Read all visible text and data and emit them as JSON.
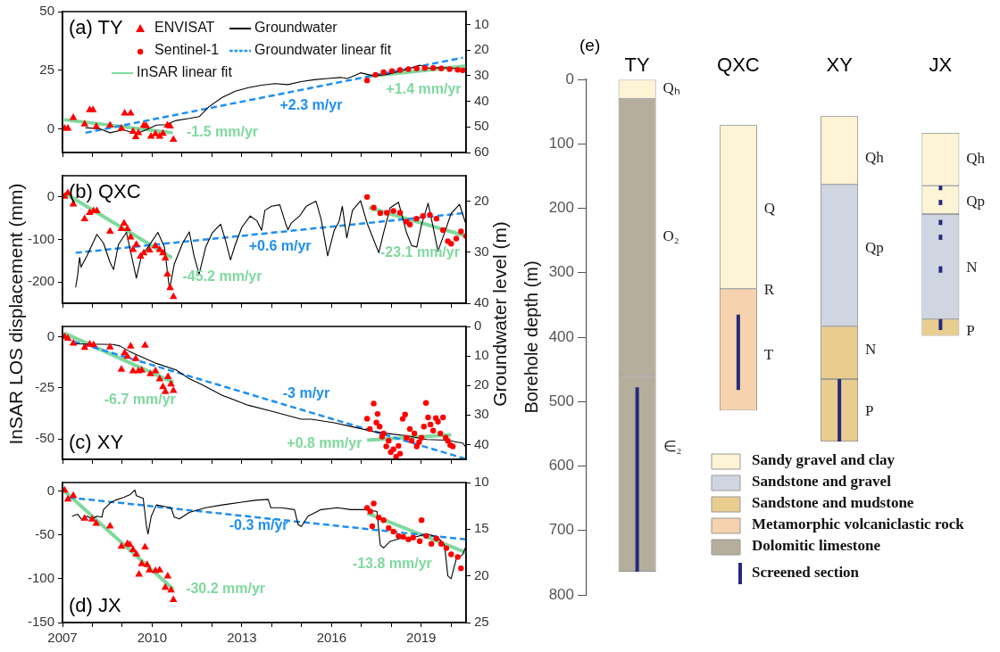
{
  "chart_data": [
    {
      "type": "scatter",
      "title": "(a) TY",
      "ylabel": "InSAR LOS displacement (mm)",
      "y2label": "Groundwater level (m)",
      "legend": "top left",
      "tick_labels": "y",
      "xlim": [
        2007,
        2020.5
      ],
      "xticks": [
        2007,
        {
          "value": 2008,
          "label": null
        },
        {
          "value": 2009,
          "label": null
        },
        2010,
        {
          "value": 2011,
          "label": null
        },
        {
          "value": 2012,
          "label": null
        },
        2013,
        {
          "value": 2014,
          "label": null
        },
        {
          "value": 2015,
          "label": null
        },
        2016,
        {
          "value": 2017,
          "label": null
        },
        {
          "value": 2018,
          "label": null
        },
        2019,
        {
          "value": 2020,
          "label": null
        }
      ],
      "ylim": [
        -10,
        50
      ],
      "yticks": [
        0,
        25,
        50
      ],
      "y2lim": [
        60,
        5
      ],
      "y2ticks": [
        10,
        20,
        30,
        40,
        50,
        60
      ],
      "series": [
        {
          "name": "ENVISAT",
          "type": "scatter",
          "marker": "triangle",
          "color": "#ff0000",
          "x": [
            2007.07,
            2007.18,
            2007.36,
            2007.74,
            2007.91,
            2008.02,
            2008.13,
            2008.59,
            2008.97,
            2009.08,
            2009.28,
            2009.36,
            2009.45,
            2009.54,
            2009.72,
            2009.8,
            2009.96,
            2010.11,
            2010.25,
            2010.36,
            2010.51,
            2010.6,
            2010.71
          ],
          "values": [
            0.3,
            0.3,
            4.8,
            2.1,
            8.1,
            8.1,
            1,
            1.6,
            0.3,
            6.7,
            6.7,
            -1.1,
            -3.4,
            -1.6,
            1.6,
            1.3,
            -3.2,
            -2.1,
            -3.2,
            -1.9,
            1.6,
            1.2,
            -4.5
          ]
        },
        {
          "name": "Groundwater",
          "type": "line",
          "axis": "y2",
          "color": "#000000",
          "x": [
            2007.77,
            2008.26,
            2008.59,
            2009.03,
            2009.47,
            2009.8,
            2010.14,
            2010.47,
            2010.8,
            2011.24,
            2011.57,
            2011.9,
            2012.34,
            2012.78,
            2013.22,
            2013.66,
            2014.1,
            2014.54,
            2014.98,
            2015.42,
            2015.87,
            2016.31,
            2016.53,
            2016.75,
            2016.97,
            2017.19,
            2017.41,
            2017.85,
            2018.29,
            2018.73,
            2018.95,
            2019.28,
            2019.62,
            2020.06,
            2020.39,
            2020.5
          ],
          "values": [
            50.3,
            50.8,
            52.3,
            51.1,
            52.7,
            51.1,
            49.3,
            49.1,
            47.5,
            46.7,
            46,
            42.1,
            38.5,
            36.1,
            34.7,
            33.7,
            33.1,
            33.5,
            32.3,
            31.6,
            31.1,
            30.7,
            31.1,
            30.1,
            28.9,
            29.5,
            30.1,
            29.5,
            28.3,
            26.8,
            25.9,
            27.1,
            26.8,
            27.1,
            27.9,
            28.6
          ]
        },
        {
          "name": "Sentinel-1",
          "type": "scatter",
          "marker": "circle",
          "color": "#ff0000",
          "x": [
            2017.19,
            2017.47,
            2017.74,
            2018.02,
            2018.29,
            2018.57,
            2018.85,
            2019.12,
            2019.4,
            2019.67,
            2019.95,
            2020.22,
            2020.39
          ],
          "values": [
            20.7,
            23.1,
            24.2,
            24.7,
            25.1,
            25.5,
            25.8,
            26,
            26,
            25.8,
            25.5,
            25.2,
            25
          ]
        },
        {
          "name": "Groundwater linear fit",
          "type": "line",
          "axis": "y2",
          "line_style": "dashed",
          "color": "#1e8ff0",
          "x": [
            2007.77,
            2020.39
          ],
          "values": [
            52.3,
            23
          ]
        },
        {
          "name": "InSAR linear fit",
          "type": "line",
          "color": "#7fd99e",
          "x": [
            2007.05,
            2010.69
          ],
          "values": [
            4,
            -1.6
          ]
        },
        {
          "type": "line",
          "color": "#7fd99e",
          "x": [
            2017.19,
            2020.5
          ],
          "values": [
            22.4,
            26.8
          ]
        }
      ],
      "annotations": [
        "+2.3 m/yr",
        "-1.5 mm/yr",
        "+1.4 mm/yr"
      ]
    },
    {
      "type": "scatter",
      "title": "(b) QXC",
      "tick_labels": "y",
      "xlim": [
        2007,
        2020.5
      ],
      "xticks": [
        2007,
        {
          "value": 2008,
          "label": null
        },
        {
          "value": 2009,
          "label": null
        },
        2010,
        {
          "value": 2011,
          "label": null
        },
        {
          "value": 2012,
          "label": null
        },
        2013,
        {
          "value": 2014,
          "label": null
        },
        {
          "value": 2015,
          "label": null
        },
        2016,
        {
          "value": 2017,
          "label": null
        },
        {
          "value": 2018,
          "label": null
        },
        2019,
        {
          "value": 2020,
          "label": null
        }
      ],
      "ylim": [
        -250,
        50
      ],
      "yticks": [
        -200,
        -100,
        0
      ],
      "y2lim": [
        40,
        15
      ],
      "y2ticks": [
        20,
        30,
        40
      ],
      "series": [
        {
          "type": "scatter",
          "marker": "triangle",
          "color": "#ff0000",
          "x": [
            2007.07,
            2007.18,
            2007.36,
            2007.74,
            2007.91,
            2008.04,
            2008.15,
            2008.59,
            2008.97,
            2009.06,
            2009.17,
            2009.28,
            2009.36,
            2009.47,
            2009.61,
            2009.72,
            2009.91,
            2010.11,
            2010.25,
            2010.36,
            2010.44,
            2010.51,
            2010.6,
            2010.71
          ],
          "values": [
            1,
            9,
            -17,
            -52,
            -37,
            -33,
            -33,
            -81,
            -75,
            -62,
            -75,
            -95,
            -124,
            -112,
            -140,
            -132,
            -125,
            -115,
            -124,
            -132,
            -144,
            -182,
            -214,
            -235
          ]
        },
        {
          "type": "line",
          "axis": "y2",
          "color": "#000000",
          "x": [
            2007.44,
            2007.51,
            2007.57,
            2007.62,
            2007.82,
            2008.15,
            2008.37,
            2008.59,
            2008.71,
            2008.87,
            2009.14,
            2009.31,
            2009.47,
            2009.64,
            2009.86,
            2010.19,
            2010.41,
            2010.58,
            2010.74,
            2011.02,
            2011.24,
            2011.4,
            2011.57,
            2011.79,
            2012.01,
            2012.29,
            2012.45,
            2012.62,
            2012.78,
            2013,
            2013.28,
            2013.5,
            2013.66,
            2013.77,
            2013.99,
            2014.27,
            2014.46,
            2014.54,
            2014.65,
            2014.93,
            2015.15,
            2015.48,
            2015.65,
            2015.87,
            2016.09,
            2016.25,
            2016.36,
            2016.51,
            2016.7,
            2016.97,
            2017.19,
            2017.41,
            2017.58,
            2017.74,
            2017.96,
            2018.24,
            2018.51,
            2018.68,
            2018.85,
            2019.01,
            2019.23,
            2019.4,
            2019.56,
            2019.78,
            2020,
            2020.28,
            2020.5
          ],
          "values": [
            36.9,
            34.3,
            31,
            32.9,
            30.7,
            26.5,
            28.2,
            32,
            33.4,
            28.5,
            26.1,
            30.7,
            35.1,
            30.7,
            29,
            26.1,
            29,
            37.3,
            32.3,
            28.2,
            26,
            30.7,
            34.3,
            29,
            26.2,
            24.5,
            27.6,
            31.5,
            28.5,
            25.1,
            22.9,
            23.8,
            25.7,
            21.8,
            21,
            20.7,
            24.3,
            25.6,
            24.3,
            22.9,
            21,
            20,
            23.5,
            30.7,
            25.7,
            24,
            21,
            27.2,
            21.8,
            19.9,
            24.3,
            27.6,
            30.1,
            26.2,
            21.3,
            20.2,
            26.2,
            28.7,
            29,
            24.6,
            20.4,
            25.1,
            29.8,
            26.2,
            22.4,
            20.6,
            24.6
          ]
        },
        {
          "type": "scatter",
          "marker": "circle",
          "color": "#ff0000",
          "x": [
            2017.19,
            2017.41,
            2017.63,
            2017.85,
            2018.07,
            2018.29,
            2018.51,
            2018.62,
            2018.84,
            2019.06,
            2019.29,
            2019.51,
            2019.73,
            2019.89,
            2020,
            2020.17,
            2020.33,
            2020.5
          ],
          "values": [
            0,
            -25,
            -38,
            -37,
            -33,
            -37,
            -58,
            -65,
            -51,
            -45,
            -42,
            -51,
            -78,
            -104,
            -110,
            -98,
            -81,
            -92
          ]
        },
        {
          "type": "line",
          "axis": "y2",
          "line_style": "dashed",
          "color": "#1e8ff0",
          "x": [
            2007.44,
            2020.5
          ],
          "values": [
            30.1,
            22.3
          ]
        },
        {
          "type": "line",
          "color": "#7fd99e",
          "x": [
            2007.07,
            2010.66
          ],
          "values": [
            9,
            -143
          ]
        },
        {
          "type": "line",
          "color": "#7fd99e",
          "x": [
            2017.25,
            2020.5
          ],
          "values": [
            -25,
            -92
          ]
        }
      ],
      "annotations": [
        "+0.6 m/yr",
        "-45.2 mm/yr",
        "-23.1 mm/yr"
      ]
    },
    {
      "type": "scatter",
      "title": "(c) XY",
      "tick_labels": "y",
      "xlim": [
        2007,
        2020.5
      ],
      "xticks": [
        2007,
        {
          "value": 2008,
          "label": null
        },
        {
          "value": 2009,
          "label": null
        },
        2010,
        {
          "value": 2011,
          "label": null
        },
        {
          "value": 2012,
          "label": null
        },
        2013,
        {
          "value": 2014,
          "label": null
        },
        {
          "value": 2015,
          "label": null
        },
        2016,
        {
          "value": 2017,
          "label": null
        },
        {
          "value": 2018,
          "label": null
        },
        2019,
        {
          "value": 2020,
          "label": null
        }
      ],
      "ylim": [
        -60,
        5
      ],
      "yticks": [
        -50,
        -25,
        0
      ],
      "y2lim": [
        45,
        0
      ],
      "y2ticks": [
        0,
        10,
        20,
        30,
        40
      ],
      "series": [
        {
          "type": "scatter",
          "marker": "triangle",
          "color": "#ff0000",
          "x": [
            2007.07,
            2007.18,
            2007.36,
            2007.74,
            2007.91,
            2008.04,
            2008.59,
            2008.97,
            2009.08,
            2009.17,
            2009.28,
            2009.36,
            2009.45,
            2009.54,
            2009.65,
            2009.76,
            2009.94,
            2010.11,
            2010.25,
            2010.36,
            2010.44,
            2010.53,
            2010.63,
            2010.71
          ],
          "values": [
            0,
            -0.9,
            -3.3,
            -5.4,
            -3.7,
            -4,
            -5.1,
            -16.1,
            -8,
            -9.7,
            -4.7,
            -16.8,
            -10.8,
            -16.8,
            -16.5,
            -4.3,
            -18.2,
            -16.8,
            -20.7,
            -24.6,
            -27,
            -19.6,
            -23.2,
            -26.4
          ]
        },
        {
          "type": "line",
          "axis": "y2",
          "color": "#000000",
          "x": [
            2007.38,
            2008.7,
            2008.92,
            2009.25,
            2010.14,
            2010.8,
            2011.24,
            2011.68,
            2012.34,
            2013.22,
            2013.99,
            2014.99,
            2015.32,
            2016.09,
            2016.75,
            2017.41,
            2018.07,
            2018.51,
            2019.18,
            2019.84,
            2020.39,
            2020.5
          ],
          "values": [
            5.9,
            6.1,
            6.6,
            8.5,
            12.5,
            14.7,
            17.7,
            19.8,
            23.3,
            26.7,
            28.7,
            31.4,
            31.4,
            32.6,
            34.1,
            35.6,
            36.5,
            37,
            38.3,
            38.5,
            39.5,
            41
          ]
        },
        {
          "type": "scatter",
          "marker": "circle",
          "color": "#ff0000",
          "x": [
            2017.19,
            2017.28,
            2017.41,
            2017.5,
            2017.54,
            2017.61,
            2017.69,
            2017.74,
            2017.83,
            2017.91,
            2017.98,
            2018.07,
            2018.16,
            2018.24,
            2018.29,
            2018.38,
            2018.46,
            2018.51,
            2018.62,
            2018.68,
            2018.77,
            2018.85,
            2018.93,
            2019.01,
            2019.09,
            2019.16,
            2019.23,
            2019.31,
            2019.4,
            2019.49,
            2019.56,
            2019.64,
            2019.73,
            2019.82,
            2019.89,
            2019.97,
            2020.06
          ],
          "values": [
            -40.1,
            -45.2,
            -32.7,
            -42,
            -37.8,
            -44,
            -48.9,
            -47.3,
            -53.7,
            -50.9,
            -56.5,
            -55.1,
            -58.7,
            -53.4,
            -57.2,
            -40.2,
            -38.1,
            -49.4,
            -45.2,
            -50.9,
            -47.3,
            -53.7,
            -51.6,
            -49.4,
            -44,
            -32.4,
            -39.5,
            -43,
            -45.9,
            -39.8,
            -41.6,
            -47.3,
            -39.5,
            -49.4,
            -50.9,
            -53,
            -53.7
          ]
        },
        {
          "type": "line",
          "axis": "y2",
          "line_style": "dashed",
          "color": "#1e8ff0",
          "x": [
            2007.38,
            2020.5
          ],
          "values": [
            5.1,
            44.9
          ]
        },
        {
          "type": "line",
          "color": "#7fd99e",
          "x": [
            2007.07,
            2010.71
          ],
          "values": [
            1.7,
            -22.4
          ]
        },
        {
          "type": "line",
          "color": "#7fd99e",
          "x": [
            2017.19,
            2020
          ],
          "values": [
            -50.6,
            -48
          ]
        }
      ],
      "annotations": [
        "-6.7 mm/yr",
        "-3 m/yr",
        "+0.8 mm/yr"
      ]
    },
    {
      "type": "scatter",
      "title": "(d) JX",
      "xlim": [
        2007,
        2020.5
      ],
      "xticks": [
        2007,
        {
          "value": 2008,
          "label": null
        },
        {
          "value": 2009,
          "label": null
        },
        2010,
        {
          "value": 2011,
          "label": null
        },
        {
          "value": 2012,
          "label": null
        },
        2013,
        {
          "value": 2014,
          "label": null
        },
        {
          "value": 2015,
          "label": null
        },
        2016,
        {
          "value": 2017,
          "label": null
        },
        {
          "value": 2018,
          "label": null
        },
        2019,
        {
          "value": 2020,
          "label": null
        }
      ],
      "ylim": [
        -150,
        10
      ],
      "yticks": [
        -150,
        -100,
        -50,
        0
      ],
      "y2lim": [
        25,
        10
      ],
      "y2ticks": [
        10,
        15,
        20,
        25
      ],
      "series": [
        {
          "type": "scatter",
          "marker": "triangle",
          "color": "#ff0000",
          "x": [
            2007.07,
            2007.18,
            2007.36,
            2007.74,
            2007.99,
            2008.13,
            2008.59,
            2008.97,
            2009.17,
            2009.25,
            2009.36,
            2009.47,
            2009.56,
            2009.65,
            2009.76,
            2009.83,
            2009.91,
            2010.11,
            2010.25,
            2010.44,
            2010.52,
            2010.63,
            2010.71
          ],
          "values": [
            1,
            -9,
            -5,
            -31,
            -32,
            -37,
            -40,
            -63,
            -60,
            -61,
            -67,
            -72,
            -95,
            -83,
            -64,
            -84,
            -90,
            -91,
            -90,
            -110,
            -97,
            -113,
            -124
          ]
        },
        {
          "type": "line",
          "axis": "y2",
          "color": "#000000",
          "x": [
            2007.32,
            2007.51,
            2007.65,
            2007.82,
            2007.99,
            2008.15,
            2008.32,
            2008.37,
            2008.59,
            2008.76,
            2009.04,
            2009.26,
            2009.42,
            2009.47,
            2009.7,
            2009.81,
            2009.86,
            2009.97,
            2010.14,
            2010.47,
            2010.63,
            2010.74,
            2010.91,
            2011.24,
            2011.79,
            2012.34,
            2013,
            2013.44,
            2013.88,
            2013.97,
            2014.32,
            2014.76,
            2014.88,
            2014.99,
            2015.21,
            2015.65,
            2016.2,
            2016.64,
            2017.19,
            2017.52,
            2017.63,
            2017.74,
            2017.96,
            2018.29,
            2018.62,
            2018.95,
            2019.17,
            2019.4,
            2019.62,
            2019.78,
            2019.89,
            2020,
            2020.17,
            2020.39,
            2020.5
          ],
          "values": [
            13.6,
            13.4,
            14,
            13.6,
            13.9,
            13.6,
            13.7,
            12.9,
            12.2,
            11.9,
            11.6,
            11.3,
            10.8,
            11.4,
            11.7,
            14.7,
            15.5,
            13.6,
            12.4,
            12.6,
            12.7,
            13.7,
            13.9,
            13.2,
            12.7,
            12.4,
            12.1,
            11.9,
            11.8,
            12.7,
            12.7,
            12.9,
            14.5,
            14.7,
            13.6,
            12.9,
            12.7,
            12.9,
            12.9,
            13.1,
            16.7,
            17,
            16.3,
            16,
            16,
            15.7,
            15.5,
            15.7,
            16.1,
            16.7,
            20,
            20.3,
            18.2,
            17.7,
            16.8
          ]
        },
        {
          "type": "scatter",
          "marker": "circle",
          "color": "#ff0000",
          "x": [
            2017.19,
            2017.3,
            2017.36,
            2017.41,
            2017.58,
            2017.74,
            2017.91,
            2018.07,
            2018.24,
            2018.4,
            2018.57,
            2018.73,
            2018.95,
            2019.01,
            2019.17,
            2019.34,
            2019.51,
            2019.67,
            2019.84,
            2020,
            2020.22,
            2020.33
          ],
          "values": [
            -19,
            -23,
            -40,
            -14,
            -30,
            -33,
            -42,
            -46,
            -51,
            -52,
            -55,
            -53,
            -57,
            -33,
            -51,
            -60,
            -54,
            -60,
            -65,
            -72,
            -75,
            -88
          ]
        },
        {
          "type": "line",
          "axis": "y2",
          "line_style": "dashed",
          "color": "#1e8ff0",
          "x": [
            2007.22,
            2020.5
          ],
          "values": [
            11.6,
            16.1
          ]
        },
        {
          "type": "line",
          "color": "#7fd99e",
          "x": [
            2007.07,
            2010.71
          ],
          "values": [
            0,
            -112
          ]
        },
        {
          "type": "line",
          "color": "#7fd99e",
          "x": [
            2017.19,
            2020.5
          ],
          "values": [
            -25,
            -70
          ]
        }
      ],
      "annotations": [
        "-0.3 m/yr",
        "-30.2 mm/yr",
        "-13.8 mm/yr"
      ]
    },
    {
      "type": "bar",
      "title": "(e)",
      "ylabel": "Borehole depth (m)",
      "legend": "bottom right",
      "categories": [
        "TY",
        "QXC",
        "XY",
        "JX"
      ],
      "ylim": [
        800,
        0
      ],
      "yticks": [
        0,
        100,
        200,
        300,
        400,
        500,
        600,
        700,
        800
      ],
      "series": [
        {
          "name": "Sandy gravel and clay",
          "color": "#fdf3d5",
          "values": [
            30,
            254,
            106,
            82
          ],
          "base": [
            0,
            71,
            57,
            83
          ]
        },
        {
          "color": "#fdf3d5",
          "values": [
            null,
            null,
            null,
            44
          ],
          "base": [
            null,
            null,
            null,
            165
          ]
        },
        {
          "name": "Sandstone and gravel",
          "color": "#cfd6e1",
          "values": [
            null,
            null,
            220,
            163
          ],
          "base": [
            null,
            null,
            163,
            209
          ]
        },
        {
          "name": "Sandstone and mudstone",
          "color": "#e8cd8f",
          "values": [
            null,
            null,
            82,
            26
          ],
          "base": [
            null,
            null,
            383,
            372
          ]
        },
        {
          "color": "#e8cd8f",
          "values": [
            null,
            null,
            97,
            null
          ],
          "base": [
            null,
            null,
            465,
            null
          ]
        },
        {
          "name": "Metamorphic volcaniclastic rock",
          "color": "#f6d3ae",
          "values": [
            null,
            189,
            null,
            null
          ],
          "base": [
            null,
            325,
            null,
            null
          ]
        },
        {
          "name": "Dolomitic limestone",
          "color": "#b5ae9c",
          "values": [
            430,
            null,
            null,
            null
          ],
          "base": [
            30,
            null,
            null,
            null
          ]
        },
        {
          "color": "#b5ae9c",
          "values": [
            304,
            null,
            null,
            null
          ],
          "base": [
            460,
            null,
            null,
            null
          ]
        },
        {
          "name": "Screened section",
          "type": "line",
          "color": "#262a7c",
          "x": [
            "TY",
            "TY",
            "TY",
            "QXC",
            "QXC",
            "QXC",
            "XY",
            "XY"
          ],
          "values": [
            478,
            764,
            null,
            365,
            482,
            null,
            465,
            562
          ]
        },
        {
          "type": "line",
          "color": "#262a7c",
          "x": [
            "JX",
            "JX"
          ],
          "values": [
            165,
            172
          ]
        },
        {
          "type": "line",
          "color": "#262a7c",
          "x": [
            "JX",
            "JX"
          ],
          "values": [
            187,
            195
          ]
        },
        {
          "type": "line",
          "color": "#262a7c",
          "x": [
            "JX",
            "JX"
          ],
          "values": [
            218,
            226
          ]
        },
        {
          "type": "line",
          "color": "#262a7c",
          "x": [
            "JX",
            "JX"
          ],
          "values": [
            241,
            249
          ]
        },
        {
          "type": "line",
          "color": "#262a7c",
          "x": [
            "JX",
            "JX"
          ],
          "values": [
            290,
            300
          ]
        },
        {
          "type": "line",
          "color": "#262a7c",
          "x": [
            "JX",
            "JX"
          ],
          "values": [
            372,
            389
          ]
        }
      ],
      "annotations": [
        "Qₕ",
        "O₂",
        "∈₂",
        "Q",
        "R",
        "T",
        "Qh",
        "Qp",
        "N",
        "P",
        "Qh",
        "Qp",
        "N",
        "P"
      ]
    }
  ]
}
